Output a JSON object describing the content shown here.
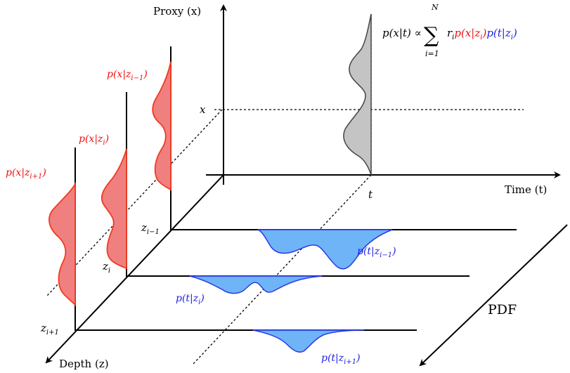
{
  "axes": {
    "proxy_label": "Proxy (x)",
    "time_label": "Time (t)",
    "depth_label": "Depth (z)",
    "pdf_label": "PDF",
    "x_tick": "x",
    "t_tick": "t"
  },
  "formula": {
    "lhs": "p(x|t) ∝",
    "sum_symbol": "∑",
    "upper": "N",
    "lower": "i=1",
    "weight": "r",
    "weight_sub": "i",
    "red_term": "p(x|z",
    "red_sub": "i",
    "red_close": ")",
    "blue_term": "p(t|z",
    "blue_sub": "i",
    "blue_close": ")"
  },
  "depth_ticks": {
    "z_im1": {
      "base": "z",
      "sub": "i−1"
    },
    "z_i": {
      "base": "z",
      "sub": "i"
    },
    "z_ip1": {
      "base": "z",
      "sub": "i+1"
    }
  },
  "red_labels": {
    "im1": {
      "base": "p(x|z",
      "sub": "i−1",
      "close": ")"
    },
    "i": {
      "base": "p(x|z",
      "sub": "i",
      "close": ")"
    },
    "ip1": {
      "base": "p(x|z",
      "sub": "i+1",
      "close": ")"
    }
  },
  "blue_labels": {
    "im1": {
      "base": "p(t|z",
      "sub": "i−1",
      "close": ")"
    },
    "i": {
      "base": "p(t|z",
      "sub": "i",
      "close": ")"
    },
    "ip1": {
      "base": "p(t|z",
      "sub": "i+1",
      "close": ")"
    }
  },
  "colors": {
    "red_fill": "#f08080",
    "red_stroke": "#f23a1e",
    "blue_fill": "#6eb4f7",
    "blue_stroke": "#2a3ae8",
    "gray_fill": "#c4c4c4",
    "label_red": "#f01010",
    "label_blue": "#2020e0"
  }
}
